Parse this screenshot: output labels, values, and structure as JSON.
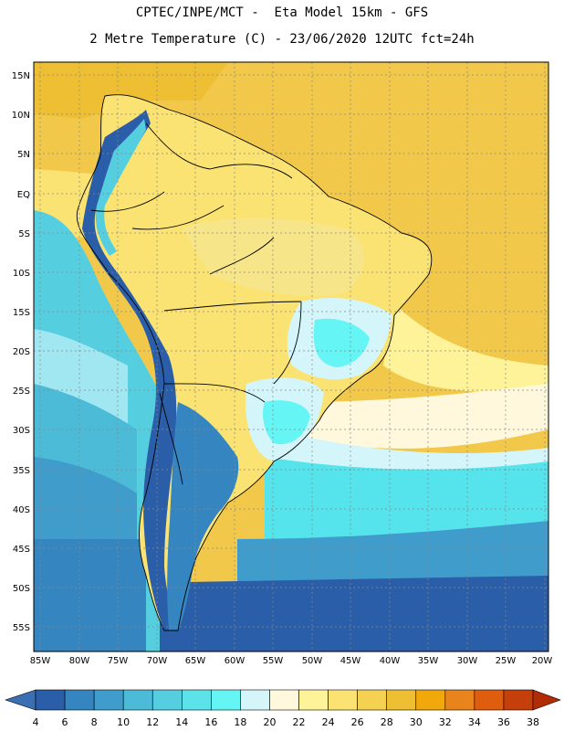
{
  "header": {
    "line1": "CPTEC/INPE/MCT -  Eta Model 15km - GFS",
    "line2": "2 Metre Temperature (C) - 23/06/2020 12UTC fct=24h"
  },
  "map": {
    "lat_labels": [
      "15N",
      "10N",
      "5N",
      "EQ",
      "5S",
      "10S",
      "15S",
      "20S",
      "25S",
      "30S",
      "35S",
      "40S",
      "45S",
      "50S",
      "55S"
    ],
    "lon_labels": [
      "85W",
      "80W",
      "75W",
      "70W",
      "65W",
      "60W",
      "55W",
      "50W",
      "45W",
      "40W",
      "35W",
      "30W",
      "25W",
      "20W"
    ],
    "colors": {
      "ocean_cold": "#2b5ea8",
      "ocean_mid": "#3f96c9",
      "ocean_cyan": "#55e3ec",
      "pale": "#d4f6fb",
      "land_warm": "#f7e58a",
      "land_hot": "#f2c84a",
      "coast": "#000000"
    }
  },
  "colorbar": {
    "values": [
      "4",
      "6",
      "8",
      "10",
      "12",
      "14",
      "16",
      "18",
      "20",
      "22",
      "24",
      "26",
      "28",
      "30",
      "32",
      "34",
      "36",
      "38"
    ],
    "colors": [
      "#3a6fb4",
      "#2b5ea8",
      "#3585c1",
      "#3f9ccb",
      "#4cbbd8",
      "#55cfe0",
      "#5ce3ea",
      "#66f5f5",
      "#d4f6fb",
      "#fff8dd",
      "#fff39a",
      "#fbe373",
      "#f4d150",
      "#eebf33",
      "#f1a80b",
      "#e9841c",
      "#de5d0e",
      "#c53f0b",
      "#b12c02"
    ]
  }
}
